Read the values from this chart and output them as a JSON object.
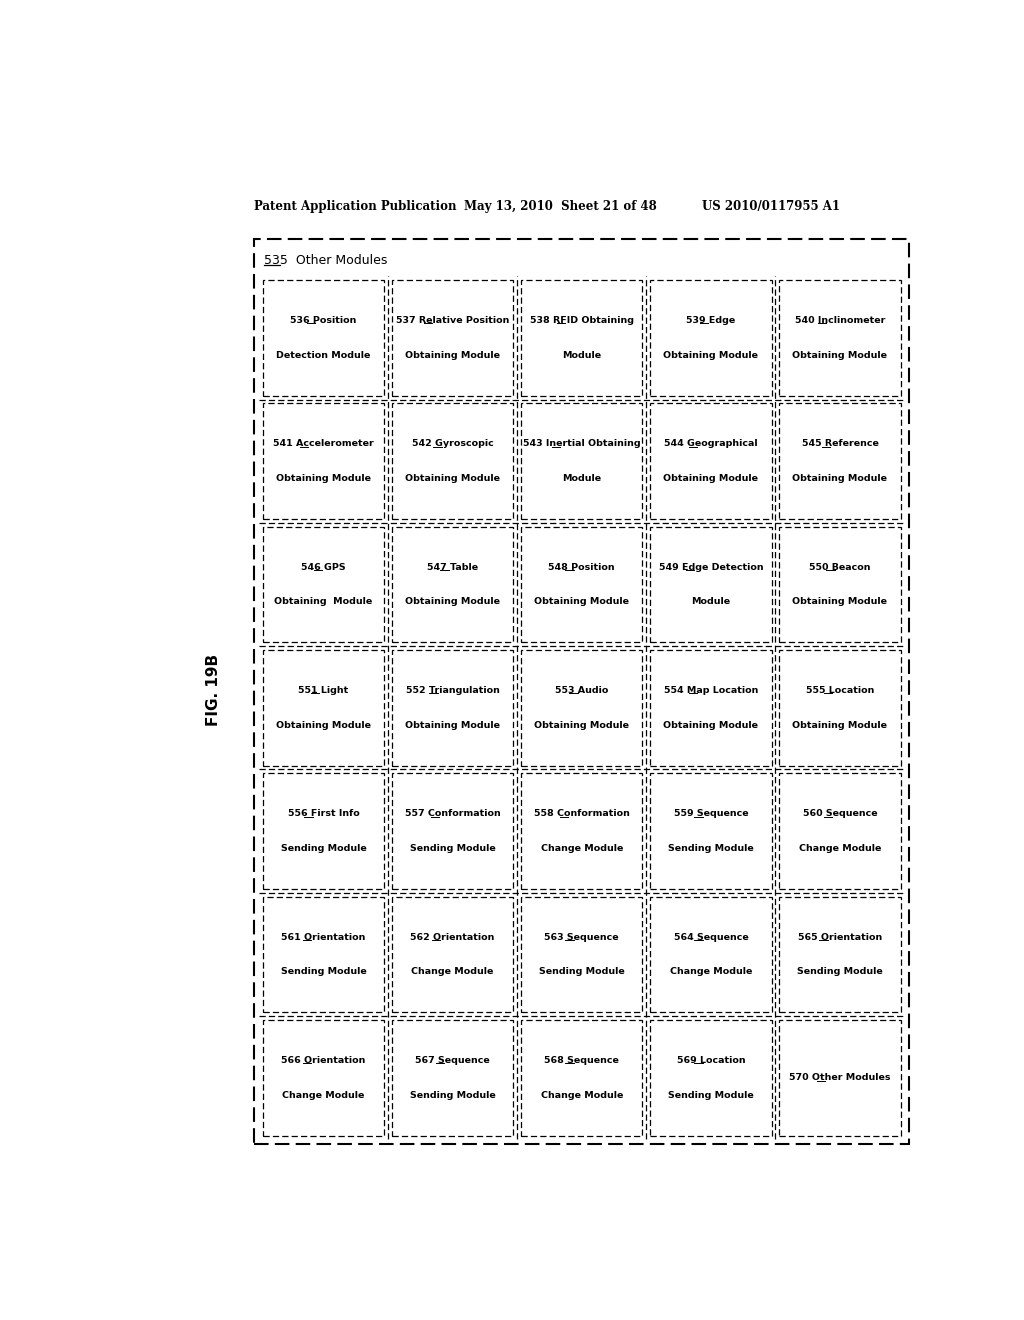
{
  "header_left": "Patent Application Publication",
  "header_mid": "May 13, 2010  Sheet 21 of 48",
  "header_right": "US 2010/0117955 A1",
  "fig_label": "FIG. 19B",
  "outer_label": "535  Other Modules",
  "bg_color": "#ffffff",
  "modules": [
    [
      "536 Position\nDetection Module",
      "537 Relative Position\nObtaining Module",
      "538 RFID Obtaining\nModule",
      "539 Edge\nObtaining Module",
      "540 Inclinometer\nObtaining Module"
    ],
    [
      "541 Accelerometer\nObtaining Module",
      "542 Gyroscopic\nObtaining Module",
      "543 Inertial Obtaining\nModule",
      "544 Geographical\nObtaining Module",
      "545 Reference\nObtaining Module"
    ],
    [
      "546 GPS\nObtaining  Module",
      "547 Table\nObtaining Module",
      "548 Position\nObtaining Module",
      "549 Edge Detection\nModule",
      "550 Beacon\nObtaining Module"
    ],
    [
      "551 Light\nObtaining Module",
      "552 Triangulation\nObtaining Module",
      "553 Audio\nObtaining Module",
      "554 Map Location\nObtaining Module",
      "555 Location\nObtaining Module"
    ],
    [
      "556 First Info\nSending Module",
      "557 Conformation\nSending Module",
      "558 Conformation\nChange Module",
      "559 Sequence\nSending Module",
      "560 Sequence\nChange Module"
    ],
    [
      "561 Orientation\nSending Module",
      "562 Orientation\nChange Module",
      "563 Sequence\nSending Module",
      "564 Sequence\nChange Module",
      "565 Orientation\nSending Module"
    ],
    [
      "566 Orientation\nChange Module",
      "567 Sequence\nSending Module",
      "568 Sequence\nChange Module",
      "569 Location\nSending Module",
      "570 Other Modules"
    ]
  ],
  "underline_ids": [
    "536",
    "541",
    "546",
    "551",
    "556",
    "561",
    "566",
    "537",
    "542",
    "547",
    "552",
    "557",
    "562",
    "567",
    "538",
    "543",
    "548",
    "553",
    "558",
    "563",
    "568",
    "539",
    "544",
    "549",
    "554",
    "559",
    "564",
    "569",
    "540",
    "545",
    "550",
    "555",
    "560",
    "565",
    "570"
  ]
}
